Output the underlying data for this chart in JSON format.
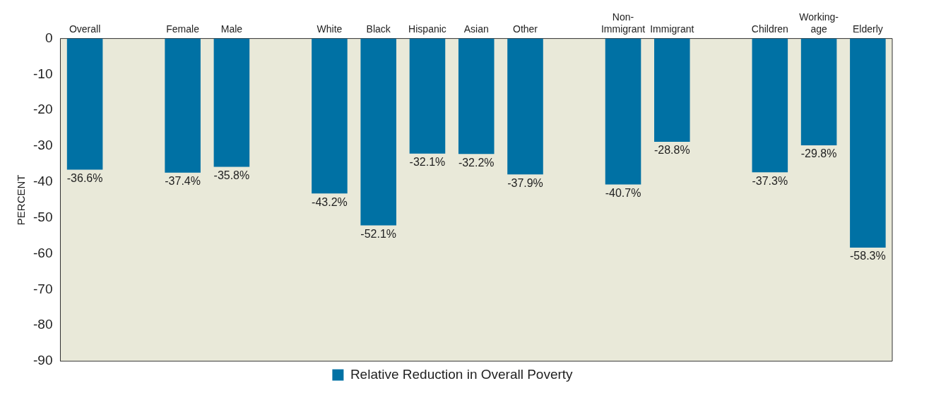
{
  "chart_data": {
    "type": "bar",
    "ylabel": "PERCENT",
    "categories": [
      "Overall",
      null,
      "Female",
      "Male",
      null,
      "White",
      "Black",
      "Hispanic",
      "Asian",
      "Other",
      null,
      "Non-\nImmigrant",
      "Immigrant",
      null,
      "Children",
      "Working-\nage",
      "Elderly"
    ],
    "series": [
      {
        "name": "Relative Reduction in Overall Poverty",
        "color": "#0071a4",
        "values": [
          -36.6,
          null,
          -37.4,
          -35.8,
          null,
          -43.2,
          -52.1,
          -32.1,
          -32.2,
          -37.9,
          null,
          -40.7,
          -28.8,
          null,
          -37.3,
          -29.8,
          -58.3
        ],
        "value_labels": [
          "-36.6%",
          null,
          "-37.4%",
          "-35.8%",
          null,
          "-43.2%",
          "-52.1%",
          "-32.1%",
          "-32.2%",
          "-37.9%",
          null,
          "-40.7%",
          "-28.8%",
          null,
          "-37.3%",
          "-29.8%",
          "-58.3%"
        ]
      }
    ],
    "ylim": [
      -90,
      0
    ],
    "yticks": [
      0,
      -10,
      -20,
      -30,
      -40,
      -50,
      -60,
      -70,
      -80,
      -90
    ],
    "grid": false,
    "legend": "bottom"
  }
}
